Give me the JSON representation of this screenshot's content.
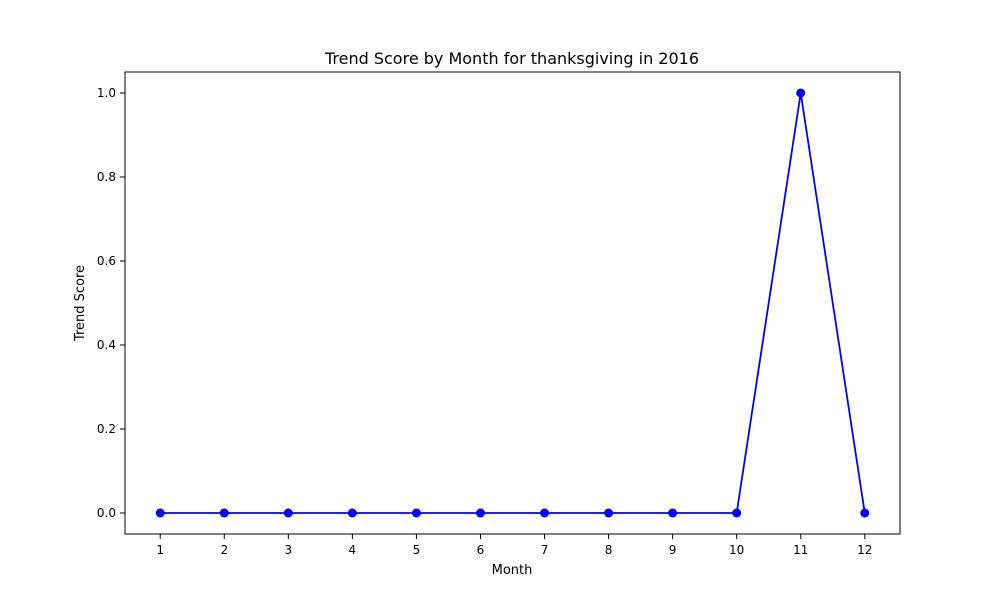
{
  "chart_data": {
    "type": "line",
    "title": "Trend Score by Month for thanksgiving in 2016",
    "xlabel": "Month",
    "ylabel": "Trend Score",
    "x": [
      1,
      2,
      3,
      4,
      5,
      6,
      7,
      8,
      9,
      10,
      11,
      12
    ],
    "series": [
      {
        "values": [
          0,
          0,
          0,
          0,
          0,
          0,
          0,
          0,
          0,
          0,
          1.0,
          0
        ],
        "color": "#0000ff",
        "marker": "circle"
      }
    ],
    "xlim": [
      0.45,
      12.55
    ],
    "ylim": [
      -0.05,
      1.05
    ],
    "x_ticks": [
      "1",
      "2",
      "3",
      "4",
      "5",
      "6",
      "7",
      "8",
      "9",
      "10",
      "11",
      "12"
    ],
    "y_ticks": [
      "0.0",
      "0.2",
      "0.4",
      "0.6",
      "0.8",
      "1.0"
    ],
    "grid": false,
    "legend": "none"
  }
}
